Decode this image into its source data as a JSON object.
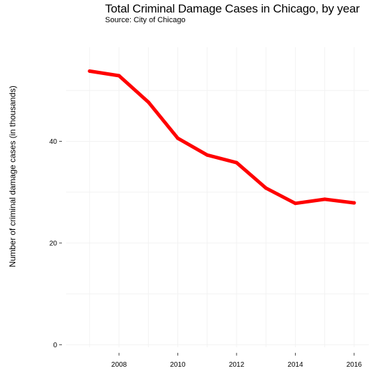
{
  "title": "Total Criminal Damage Cases in Chicago, by year",
  "subtitle": "Source: City of Chicago",
  "chart_data": {
    "type": "line",
    "title": "Total Criminal Damage Cases in Chicago, by year",
    "subtitle": "Source: City of Chicago",
    "xlabel": "",
    "ylabel": "Number of criminal damage cases (in thousands)",
    "x": [
      2007,
      2008,
      2009,
      2010,
      2011,
      2012,
      2013,
      2014,
      2015,
      2016
    ],
    "series": [
      {
        "values": [
          53.8,
          52.9,
          47.7,
          40.6,
          37.3,
          35.8,
          30.8,
          27.8,
          28.6,
          27.9
        ],
        "color": "#ff0000"
      }
    ],
    "xlim": [
      2006.2,
      2016.5
    ],
    "ylim": [
      -0.5,
      58.5
    ],
    "x_ticks": [
      2008,
      2010,
      2012,
      2014,
      2016
    ],
    "y_ticks": [
      0,
      20,
      40
    ],
    "grid": true,
    "legend": "none"
  }
}
